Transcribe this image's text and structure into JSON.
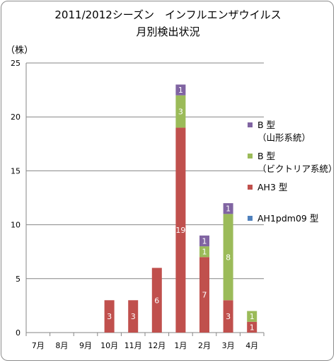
{
  "chart_data": {
    "type": "bar",
    "stacked": true,
    "title": "2011/2012シーズン　インフルエンザウイルス",
    "subtitle": "月別検出状況",
    "ylabel": "（株）",
    "xlabel": "",
    "ylim": [
      0,
      25
    ],
    "yticks": [
      0,
      5,
      10,
      15,
      20,
      25
    ],
    "grid": true,
    "legend_position": "right",
    "categories": [
      "7月",
      "8月",
      "9月",
      "10月",
      "11月",
      "12月",
      "1月",
      "2月",
      "3月",
      "4月"
    ],
    "series": [
      {
        "name": "AH1pdm09 型",
        "color": "#4f81bd",
        "values": [
          0,
          0,
          0,
          0,
          0,
          0,
          0,
          0,
          0,
          0
        ]
      },
      {
        "name": "AH3 型",
        "color": "#c0504d",
        "values": [
          0,
          0,
          0,
          3,
          3,
          6,
          19,
          7,
          3,
          1
        ]
      },
      {
        "name": "B 型\n（ビクトリア系統）",
        "color": "#9bbb59",
        "values": [
          0,
          0,
          0,
          0,
          0,
          0,
          3,
          1,
          8,
          1
        ]
      },
      {
        "name": "B 型\n（山形系統）",
        "color": "#8064a2",
        "values": [
          0,
          0,
          0,
          0,
          0,
          0,
          1,
          1,
          1,
          0
        ]
      }
    ],
    "data_labels": [
      [
        null,
        null,
        null,
        null,
        null,
        null,
        null,
        null,
        null,
        null
      ],
      [
        null,
        null,
        null,
        "3",
        "3",
        "6",
        "19",
        "7",
        "3",
        "1"
      ],
      [
        null,
        null,
        null,
        null,
        null,
        null,
        "3",
        "1",
        "8",
        "1"
      ],
      [
        null,
        null,
        null,
        null,
        null,
        null,
        "1",
        "1",
        "1",
        null
      ]
    ],
    "legend_order": [
      3,
      2,
      1,
      0
    ]
  }
}
